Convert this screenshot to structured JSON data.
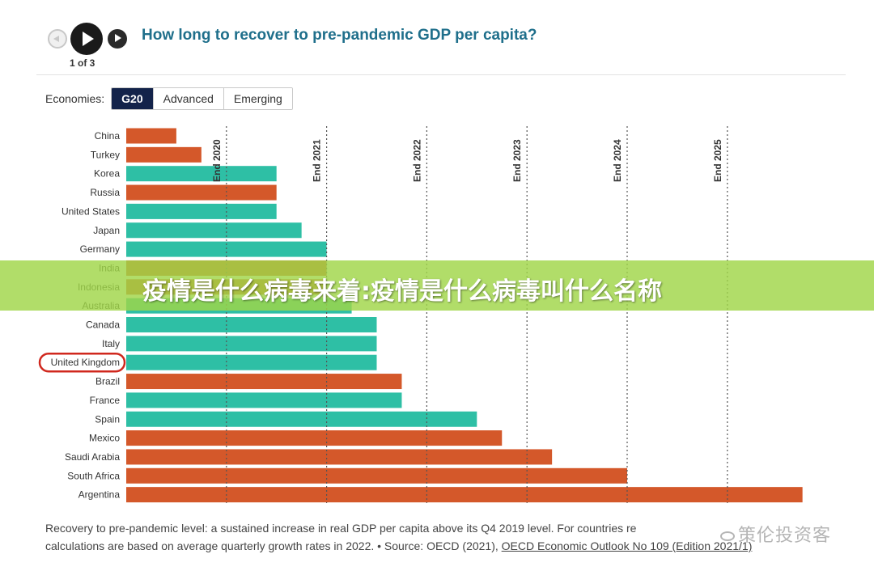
{
  "nav": {
    "counter": "1 of 3"
  },
  "title": "How long to recover to pre-pandemic GDP per capita?",
  "economies": {
    "label": "Economies:",
    "options": [
      "G20",
      "Advanced",
      "Emerging"
    ],
    "selected": "G20"
  },
  "chart_data": {
    "type": "bar",
    "orientation": "horizontal",
    "xaxis": "recovery date (quarters after Q4 2019)",
    "reference_lines": [
      "End 2020",
      "End 2021",
      "End 2022",
      "End 2023",
      "End 2024",
      "End 2025"
    ],
    "highlighted": "United Kingdom",
    "colors": {
      "advanced": "#2ebfa5",
      "emerging": "#d4582a",
      "highlight_outline": "#d0281e",
      "reference_line": "#555555"
    },
    "categories": [
      "China",
      "Turkey",
      "Korea",
      "Russia",
      "United States",
      "Japan",
      "Germany",
      "India",
      "Indonesia",
      "Australia",
      "Canada",
      "Italy",
      "United Kingdom",
      "Brazil",
      "France",
      "Spain",
      "Mexico",
      "Saudi Arabia",
      "South Africa",
      "Argentina"
    ],
    "groups": [
      "emerging",
      "emerging",
      "advanced",
      "emerging",
      "advanced",
      "advanced",
      "advanced",
      "emerging",
      "emerging",
      "advanced",
      "advanced",
      "advanced",
      "advanced",
      "emerging",
      "advanced",
      "advanced",
      "emerging",
      "emerging",
      "emerging",
      "emerging"
    ],
    "values": [
      2,
      3,
      6,
      6,
      6,
      7,
      8,
      8,
      8,
      9,
      10,
      10,
      10,
      11,
      11,
      14,
      15,
      17,
      20,
      27
    ]
  },
  "footnote": {
    "line1": "Recovery to pre-pandemic level: a sustained increase in real GDP per capita above its Q4 2019 level. For countries re",
    "line2_pre": "calculations are based on average quarterly growth rates in 2022. • Source: OECD (2021), ",
    "line2_link": "OECD Economic Outlook No 109 (Edition 2021/1)"
  },
  "watermark": "策伦投资客",
  "overlay": {
    "text": "疫情是什么病毒来着:疫情是什么病毒叫什么名称"
  }
}
